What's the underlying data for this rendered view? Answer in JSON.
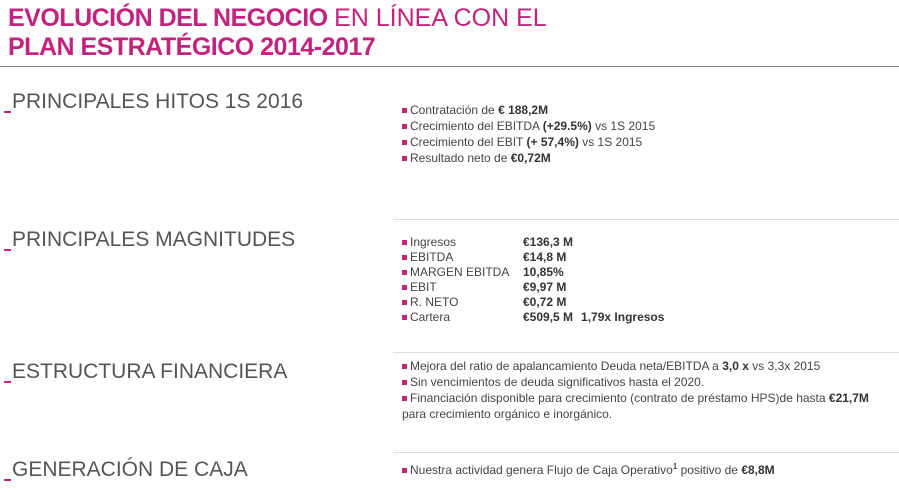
{
  "header": {
    "title_bold_1": "EVOLUCIÓN DEL NEGOCIO",
    "title_light": "EN LÍNEA CON EL",
    "title_bold_2": "PLAN  ESTRATÉGICO 2014-2017"
  },
  "hitos": {
    "heading": "PRINCIPALES HITOS 1S 2016",
    "items": [
      [
        "Contratación de ",
        "€ 188,2M"
      ],
      [
        "Crecimiento del EBITDA ",
        "(+29.5%)",
        " vs 1S 2015"
      ],
      [
        "Crecimiento del EBIT ",
        "(+ 57,4%)",
        " vs 1S 2015"
      ],
      [
        "Resultado neto de ",
        "€0,72M"
      ]
    ]
  },
  "magnitudes": {
    "heading": "PRINCIPALES MAGNITUDES",
    "rows": [
      [
        "Ingresos",
        "€136,3 M"
      ],
      [
        "EBITDA",
        "€14,8 M"
      ],
      [
        "MARGEN EBITDA",
        "10,85%"
      ],
      [
        "EBIT",
        "€9,97 M"
      ],
      [
        "R. NETO",
        "€0,72 M"
      ],
      [
        "Cartera",
        "€509,5 M",
        "1,79x Ingresos"
      ]
    ]
  },
  "estructura": {
    "heading": "ESTRUCTURA FINANCIERA",
    "items": [
      [
        "Mejora del ratio de apalancamiento Deuda neta/EBITDA  a  ",
        "3,0 x",
        " vs  3,3x 2015"
      ],
      [
        "Sin vencimientos de deuda  significativos hasta  el 2020."
      ],
      [
        "Financiación  disponible para crecimiento (contrato de préstamo HPS)de hasta ",
        "€21,7M",
        " para  crecimiento  orgánico e inorgánico."
      ]
    ]
  },
  "generacion": {
    "heading": "GENERACIÓN DE CAJA",
    "items": [
      [
        "Nuestra actividad genera  Flujo de Caja Operativo",
        "1",
        " positivo de  ",
        "€8,8M"
      ]
    ]
  }
}
